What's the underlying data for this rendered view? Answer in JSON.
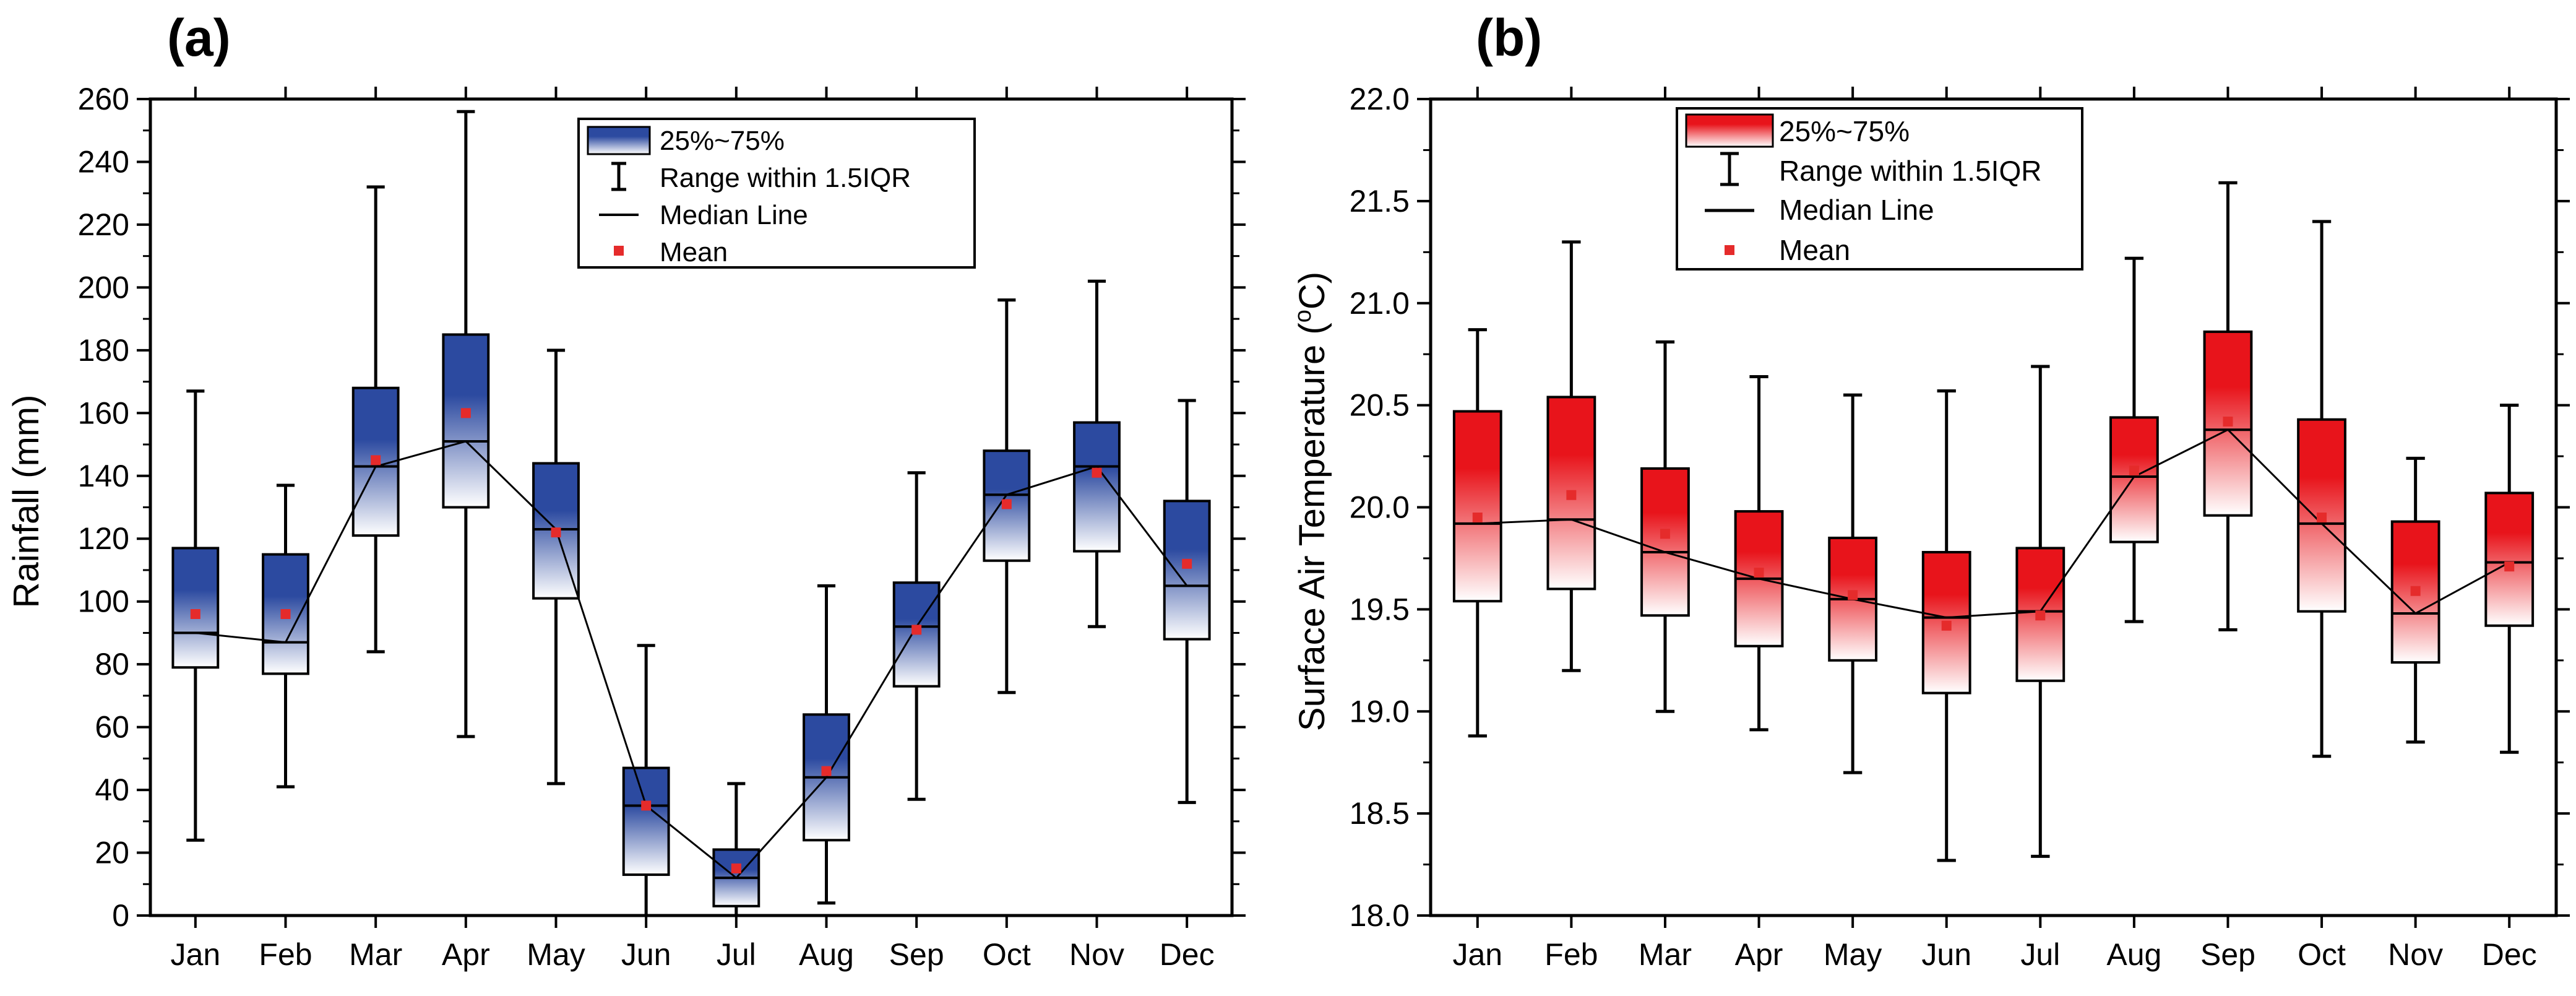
{
  "chart_data": [
    {
      "type": "box",
      "panel_label": "(a)",
      "title": "",
      "xlabel": "",
      "ylabel": "Rainfall (mm)",
      "ylim": [
        0,
        260
      ],
      "yticks": [
        0,
        20,
        40,
        60,
        80,
        100,
        120,
        140,
        160,
        180,
        200,
        220,
        240,
        260
      ],
      "ytick_labels": [
        "0",
        "20",
        "40",
        "60",
        "80",
        "100",
        "120",
        "140",
        "160",
        "180",
        "200",
        "220",
        "240",
        "260"
      ],
      "categories": [
        "Jan",
        "Feb",
        "Mar",
        "Apr",
        "May",
        "Jun",
        "Jul",
        "Aug",
        "Sep",
        "Oct",
        "Nov",
        "Dec"
      ],
      "series": [
        {
          "name": "25%~75%",
          "q1": [
            79,
            77,
            121,
            130,
            101,
            13,
            3,
            24,
            73,
            113,
            116,
            88
          ],
          "q3": [
            117,
            115,
            168,
            185,
            144,
            47,
            21,
            64,
            106,
            148,
            157,
            132
          ],
          "median": [
            90,
            87,
            143,
            151,
            123,
            35,
            12,
            44,
            92,
            134,
            143,
            105
          ],
          "whisker_low": [
            24,
            41,
            84,
            57,
            42,
            0,
            0,
            4,
            37,
            71,
            92,
            36
          ],
          "whisker_high": [
            167,
            137,
            232,
            256,
            180,
            86,
            42,
            105,
            141,
            196,
            202,
            164
          ],
          "mean": [
            96,
            96,
            145,
            160,
            122,
            35,
            15,
            46,
            91,
            131,
            141,
            112
          ]
        }
      ],
      "box_color": "#2c4aa0",
      "box_fade_color": "#ffffff",
      "mean_color": "#e52b2b",
      "legend": {
        "position": "top-center",
        "entries": [
          "25%~75%",
          "Range within 1.5IQR",
          "Median Line",
          "Mean"
        ]
      }
    },
    {
      "type": "box",
      "panel_label": "(b)",
      "title": "",
      "xlabel": "",
      "ylabel": "Surface Air Temperature (",
      "ylabel_sup": "o",
      "ylabel_end": "C)",
      "ylim": [
        18.0,
        22.0
      ],
      "yticks": [
        18.0,
        18.5,
        19.0,
        19.5,
        20.0,
        20.5,
        21.0,
        21.5,
        22.0
      ],
      "ytick_labels": [
        "18.0",
        "18.5",
        "19.0",
        "19.5",
        "20.0",
        "20.5",
        "21.0",
        "21.5",
        "22.0"
      ],
      "categories": [
        "Jan",
        "Feb",
        "Mar",
        "Apr",
        "May",
        "Jun",
        "Jul",
        "Aug",
        "Sep",
        "Oct",
        "Nov",
        "Dec"
      ],
      "series": [
        {
          "name": "25%~75%",
          "q1": [
            19.54,
            19.6,
            19.47,
            19.32,
            19.25,
            19.09,
            19.15,
            19.83,
            19.96,
            19.49,
            19.24,
            19.42
          ],
          "q3": [
            20.47,
            20.54,
            20.19,
            19.98,
            19.85,
            19.78,
            19.8,
            20.44,
            20.86,
            20.43,
            19.93,
            20.07
          ],
          "median": [
            19.92,
            19.94,
            19.78,
            19.65,
            19.55,
            19.46,
            19.49,
            20.15,
            20.38,
            19.92,
            19.48,
            19.73
          ],
          "whisker_low": [
            18.88,
            19.2,
            19.0,
            18.91,
            18.7,
            18.27,
            18.29,
            19.44,
            19.4,
            18.78,
            18.85,
            18.8
          ],
          "whisker_high": [
            20.87,
            21.3,
            20.81,
            20.64,
            20.55,
            20.57,
            20.69,
            21.22,
            21.59,
            21.4,
            20.24,
            20.5
          ],
          "mean": [
            19.95,
            20.06,
            19.87,
            19.68,
            19.57,
            19.42,
            19.47,
            20.18,
            20.42,
            19.95,
            19.59,
            19.71
          ]
        }
      ],
      "box_color": "#e8141b",
      "box_fade_color": "#ffffff",
      "mean_color": "#e52b2b",
      "legend": {
        "position": "top-left",
        "entries": [
          "25%~75%",
          "Range within 1.5IQR",
          "Median Line",
          "Mean"
        ]
      }
    }
  ]
}
